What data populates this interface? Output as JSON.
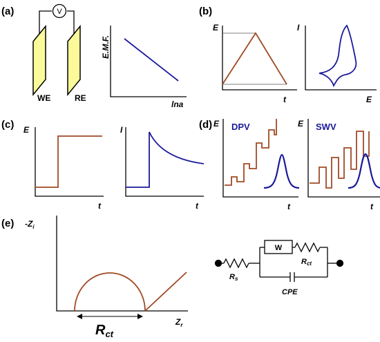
{
  "colors": {
    "brown": "#a04a24",
    "blue": "#1a1a9a",
    "electrode_fill": "#fafa9a",
    "black": "#000000"
  },
  "panels": {
    "a": {
      "label": "(a)",
      "electrodes": [
        "WE",
        "RE"
      ],
      "meter": "V",
      "plot": {
        "ylabel": "E.M.F.",
        "xlabel": "lna"
      }
    },
    "b": {
      "label": "(b)",
      "plot1": {
        "ylabel": "E",
        "xlabel": "t"
      },
      "plot2": {
        "ylabel": "I",
        "xlabel": "E"
      }
    },
    "c": {
      "label": "(c)",
      "plot1": {
        "ylabel": "E",
        "xlabel": "t"
      },
      "plot2": {
        "ylabel": "I",
        "xlabel": "t"
      }
    },
    "d": {
      "label": "(d)",
      "plot1": {
        "ylabel": "E",
        "xlabel": "t",
        "title": "DPV"
      },
      "plot2": {
        "ylabel": "E",
        "xlabel": "t",
        "title": "SWV"
      }
    },
    "e": {
      "label": "(e)",
      "plot": {
        "ylabel": "-Z",
        "ylabel_sub": "i",
        "xlabel": "Z",
        "xlabel_sub": "r"
      },
      "rct_main": "R",
      "rct_sub": "ct",
      "circuit": {
        "rs": "R",
        "rs_sub": "s",
        "rct": "R",
        "rct_sub": "ct",
        "w": "W",
        "cpe": "CPE"
      }
    }
  }
}
